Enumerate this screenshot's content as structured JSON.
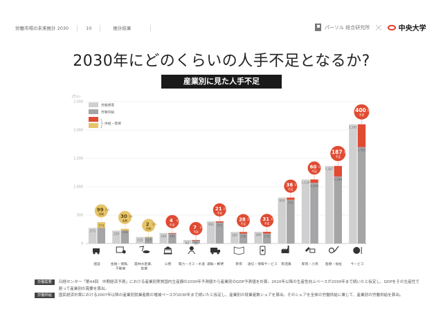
{
  "header": {
    "series_title": "労働市場の未来推計 2030",
    "page_number": "10",
    "section": "推計結果"
  },
  "logos": {
    "persol": "パーソル 総合研究所",
    "separator": "×",
    "chuo": "中央大学"
  },
  "title": "2030年にどのくらいの人手不足となるか?",
  "subtitle": "産業別に見た人手不足",
  "colors": {
    "demand": "#d0d0d0",
    "supply": "#a5a5a7",
    "shortage": "#e04b32",
    "surplus": "#e6c469"
  },
  "chart_data": {
    "type": "bar",
    "title": "産業別に見た人手不足",
    "ylabel": "(万人)",
    "ylim": [
      0,
      2500
    ],
    "yticks": [
      0,
      500,
      1000,
      1500,
      2000,
      2500
    ],
    "ytick_labels": [
      "0",
      "500",
      "1,000",
      "1,500",
      "2,000",
      "2,500"
    ],
    "grid": true,
    "legend_position": "top-left",
    "legend": [
      {
        "key": "demand",
        "label": "労働需要"
      },
      {
        "key": "supply",
        "label": "労働供給"
      },
      {
        "key": "shortage",
        "label": "供給－需要"
      },
      {
        "key": "surplus",
        "label": ""
      }
    ],
    "categories": [
      "建設",
      "金融・保険、不動産",
      "農林水産業、鉱業",
      "公務",
      "電力・ガス・水道",
      "運輸・郵便",
      "教育",
      "通信・情報サービス",
      "製造業",
      "卸売・小売",
      "医療・福祉",
      "サービス"
    ],
    "icons": [
      "forklift-icon",
      "bank-card-icon",
      "fishing-icon",
      "government-building-icon",
      "utility-icon",
      "truck-icon",
      "book-icon",
      "smartphone-icon",
      "factory-icon",
      "shopping-icon",
      "medical-icon",
      "dining-icon"
    ],
    "series": [
      {
        "name": "労働需要",
        "values": [
          275,
          228,
          115,
          185,
          62,
          392,
          203,
          206,
          810,
          1129,
          1367,
          2101
        ]
      },
      {
        "name": "労働供給",
        "values": [
          374,
          258,
          117,
          181,
          55,
          372,
          176,
          175,
          771,
          1070,
          1180,
          1701
        ]
      }
    ],
    "gap_labels": [
      {
        "value": "99",
        "unit": "万人",
        "kind": "余剰",
        "type": "surplus"
      },
      {
        "value": "30",
        "unit": "万人",
        "kind": "余剰",
        "type": "surplus"
      },
      {
        "value": "2",
        "unit": "万人",
        "kind": "余剰",
        "type": "surplus"
      },
      {
        "value": "4",
        "unit": "万人",
        "kind": "不足",
        "type": "shortage"
      },
      {
        "value": "7",
        "unit": "万人",
        "kind": "不足",
        "type": "shortage"
      },
      {
        "value": "21",
        "unit": "万人",
        "kind": "不足",
        "type": "shortage"
      },
      {
        "value": "28",
        "unit": "万人",
        "kind": "不足",
        "type": "shortage"
      },
      {
        "value": "31",
        "unit": "万人",
        "kind": "不足",
        "type": "shortage"
      },
      {
        "value": "38",
        "unit": "万人",
        "kind": "不足",
        "type": "shortage"
      },
      {
        "value": "60",
        "unit": "万人",
        "kind": "不足",
        "type": "shortage"
      },
      {
        "value": "187",
        "unit": "万人",
        "kind": "不足",
        "type": "shortage"
      },
      {
        "value": "400",
        "unit": "万人",
        "kind": "不足",
        "type": "shortage"
      }
    ]
  },
  "notes": [
    {
      "tag": "労働需要",
      "text": "日経センター「第44回　中期経済予測」における産業別実質国内生産額の2030年予測値から産業別のGDP予測値を計算。2010年以降の生産性向上ペースが2030年まで続いたと仮定し、GDPをその生産性で割って産業別の需要を算出。"
    },
    {
      "tag": "労働供給",
      "text": "国民経済計算における2007年以降の産業別就業者数の増減ペースが2030年まで続いたと仮定し、産業別の就業者数シェアを算出。そのシェアを全体の労働供給に乗じて、産業別の労働供給を算出。"
    }
  ]
}
